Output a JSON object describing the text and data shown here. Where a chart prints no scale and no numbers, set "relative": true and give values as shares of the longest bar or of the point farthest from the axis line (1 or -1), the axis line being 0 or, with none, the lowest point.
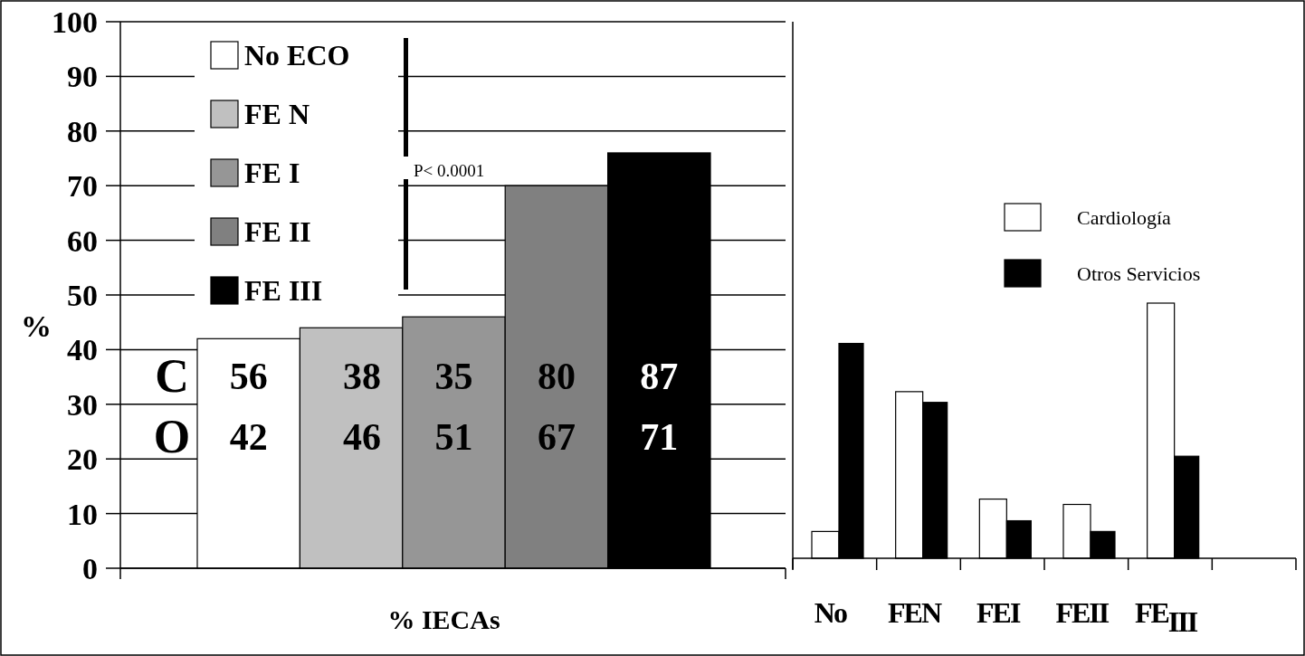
{
  "chart_data": [
    {
      "type": "bar",
      "xlabel": "% IECAs",
      "ylabel": "%",
      "categories": [
        null
      ],
      "series": [
        {
          "name": "No ECO",
          "color": "#ffffff",
          "values": [
            42
          ]
        },
        {
          "name": "FE N",
          "color": "#c0c0c0",
          "values": [
            44
          ]
        },
        {
          "name": "FE I",
          "color": "#969696",
          "values": [
            46
          ]
        },
        {
          "name": "FE II",
          "color": "#808080",
          "values": [
            70
          ]
        },
        {
          "name": "FE III",
          "color": "#000000",
          "values": [
            76
          ]
        }
      ],
      "ylim": [
        0,
        100
      ],
      "yticks": [
        0,
        10,
        20,
        30,
        40,
        50,
        60,
        70,
        80,
        90,
        100
      ],
      "grid": "y",
      "legend": "top left",
      "annotations": [
        "P< 0.0001",
        "C",
        "56",
        "38",
        "35",
        "80",
        "87",
        "O",
        "42",
        "46",
        "51",
        "67",
        "71"
      ]
    },
    {
      "type": "bar",
      "relative": true,
      "categories": [
        "No",
        "FEN",
        "FEI",
        "FEII",
        "FE$_{III}$",
        null
      ],
      "series": [
        {
          "name": "Cardiología",
          "color": "#ffffff",
          "values": [
            0.105,
            0.653,
            0.232,
            0.211,
            1,
            null
          ]
        },
        {
          "name": "Otros Servicios",
          "color": "#000000",
          "values": [
            0.842,
            0.611,
            0.147,
            0.105,
            0.4,
            null
          ]
        }
      ],
      "legend": "right"
    }
  ]
}
